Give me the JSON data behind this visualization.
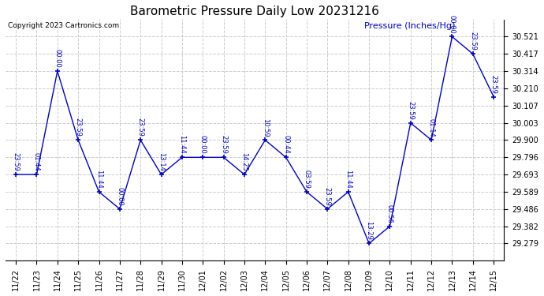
{
  "title": "Barometric Pressure Daily Low 20231216",
  "ylabel": "Pressure (Inches/Hg)",
  "copyright": "Copyright 2023 Cartronics.com",
  "background_color": "#ffffff",
  "line_color": "#0000cc",
  "grid_color": "#cccccc",
  "yticks": [
    29.279,
    29.382,
    29.486,
    29.589,
    29.693,
    29.796,
    29.9,
    30.003,
    30.107,
    30.21,
    30.314,
    30.417,
    30.521
  ],
  "dates": [
    "11/22",
    "11/23",
    "11/24",
    "11/25",
    "11/26",
    "11/27",
    "11/28",
    "11/29",
    "11/30",
    "12/01",
    "12/02",
    "12/03",
    "12/04",
    "12/05",
    "12/06",
    "12/07",
    "12/08",
    "12/09",
    "12/10",
    "12/11",
    "12/12",
    "12/13",
    "12/14",
    "12/15"
  ],
  "values": [
    29.693,
    29.693,
    30.314,
    29.9,
    29.589,
    29.486,
    29.9,
    29.693,
    29.796,
    29.796,
    29.796,
    29.693,
    29.9,
    29.796,
    29.589,
    29.486,
    29.589,
    29.279,
    29.382,
    30.003,
    29.9,
    30.521,
    30.417,
    30.16
  ],
  "time_labels": [
    "23:59",
    "01:44",
    "00:00",
    "23:59",
    "11:44",
    "00:00",
    "23:59",
    "13:14",
    "11:44",
    "00:00",
    "23:59",
    "14:25",
    "10:59",
    "00:44",
    "03:59",
    "23:59",
    "11:44",
    "13:29",
    "00:56",
    "23:59",
    "01:14",
    "00:00",
    "23:59",
    "23:59"
  ],
  "ylim": [
    29.175,
    30.625
  ],
  "title_fontsize": 11,
  "label_fontsize": 8,
  "tick_fontsize": 7,
  "annot_fontsize": 6
}
